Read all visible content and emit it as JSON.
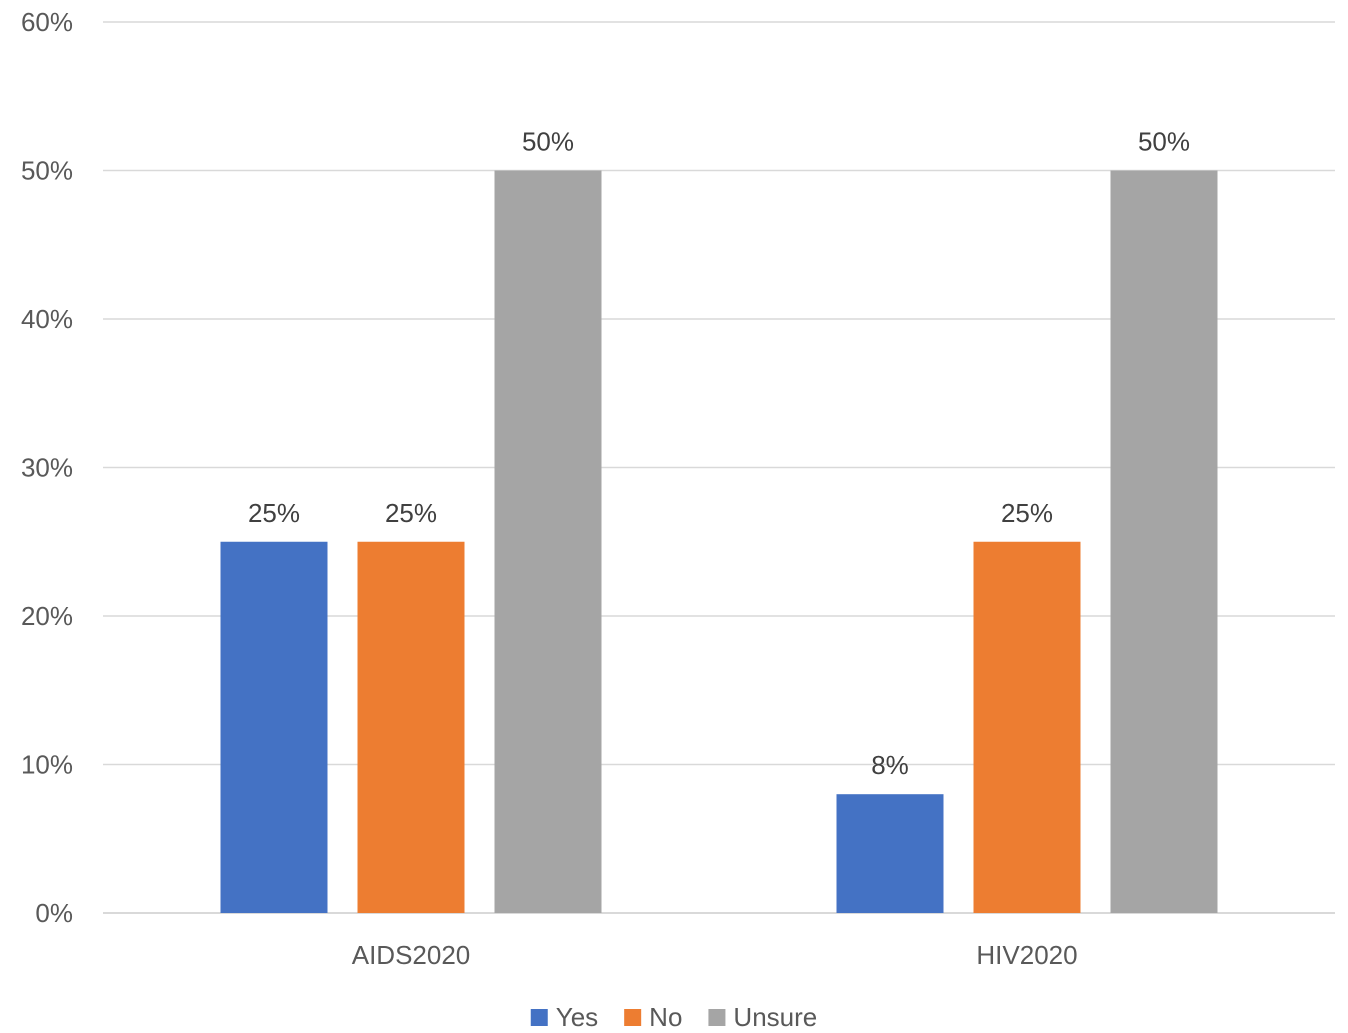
{
  "chart_data": {
    "type": "bar",
    "categories": [
      "AIDS2020",
      "HIV2020"
    ],
    "series": [
      {
        "name": "Yes",
        "values": [
          25,
          8
        ],
        "labels": [
          "25%",
          "8%"
        ],
        "color": "#4472c4"
      },
      {
        "name": "No",
        "values": [
          25,
          25
        ],
        "labels": [
          "25%",
          "25%"
        ],
        "color": "#ed7d31"
      },
      {
        "name": "Unsure",
        "values": [
          50,
          50
        ],
        "labels": [
          "50%",
          "50%"
        ],
        "color": "#a5a5a5"
      }
    ],
    "yticks": [
      "0%",
      "10%",
      "20%",
      "30%",
      "40%",
      "50%",
      "60%"
    ],
    "ylim": [
      0,
      60
    ],
    "title": "",
    "xlabel": "",
    "ylabel": "",
    "grid": true,
    "legend_position": "bottom"
  }
}
